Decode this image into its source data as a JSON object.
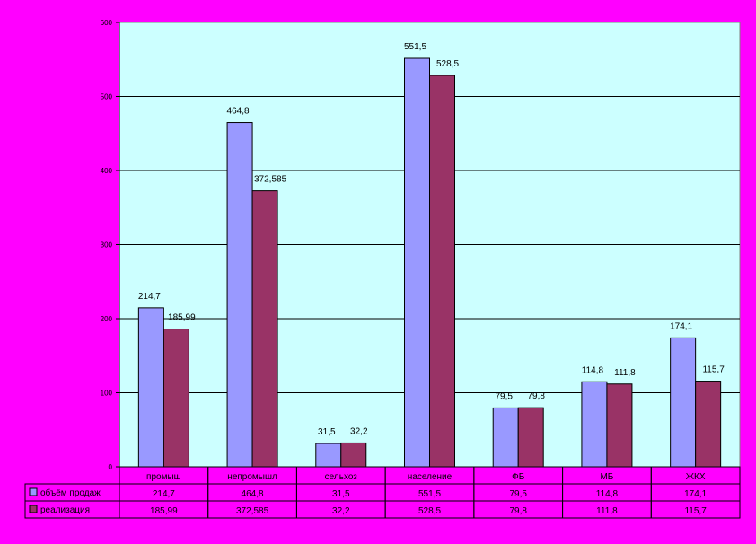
{
  "colors": {
    "background": "#ff00ff",
    "plot_area": "#ccffff",
    "series_1": "#9999ff",
    "series_2": "#993366",
    "grid": "#000000",
    "text": "#000000"
  },
  "chart_data": {
    "type": "bar",
    "categories": [
      "промыш",
      "непромышл",
      "сельхоз",
      "население",
      "ФБ",
      "МБ",
      "ЖКХ"
    ],
    "series": [
      {
        "name": "объём продаж",
        "values": [
          214.7,
          464.8,
          31.5,
          551.5,
          79.5,
          114.8,
          174.1
        ],
        "labels": [
          "214,7",
          "464,8",
          "31,5",
          "551,5",
          "79,5",
          "114,8",
          "174,1"
        ],
        "table_values": [
          "214,7",
          "464,8",
          "31,5",
          "551,5",
          "79,5",
          "114,8",
          "174,1"
        ],
        "color": "#9999ff"
      },
      {
        "name": "реализация",
        "values": [
          185.99,
          372.585,
          32.2,
          528.5,
          79.8,
          111.8,
          115.7
        ],
        "labels": [
          "185,99",
          "372,585",
          "32,2",
          "528,5",
          "79,8",
          "111,8",
          "115,7"
        ],
        "table_values": [
          "185,99",
          "372,585",
          "32,2",
          "528,5",
          "79,8",
          "111,8",
          "115,7"
        ],
        "color": "#993366"
      }
    ],
    "y_ticks": [
      "0",
      "100",
      "200",
      "300",
      "400",
      "500",
      "600"
    ],
    "ylim": [
      0,
      600
    ],
    "grid": true,
    "legend": "data table below chart"
  }
}
